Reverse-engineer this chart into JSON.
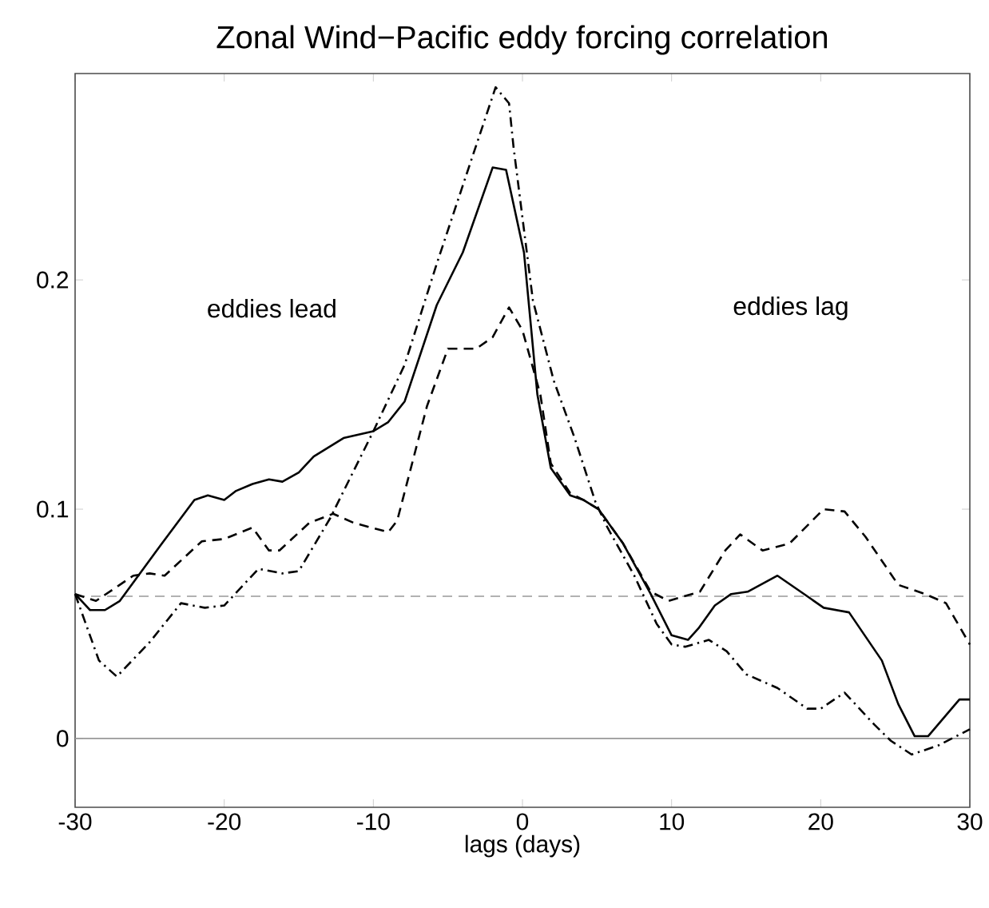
{
  "chart_data": {
    "type": "line",
    "title": "Zonal Wind−Pacific eddy forcing correlation",
    "xlabel": "lags (days)",
    "xlim": [
      -30,
      30
    ],
    "xticks": [
      -30,
      -20,
      -10,
      0,
      10,
      20,
      30
    ],
    "ylim": [
      -0.03,
      0.29
    ],
    "yticks": [
      0,
      0.1,
      0.2
    ],
    "annotations": [
      "eddies lead",
      "eddies lag"
    ],
    "ref_lines": [
      {
        "axis": "y",
        "value": 0.062,
        "color": "#999999",
        "line_style": "dashed"
      },
      {
        "axis": "y",
        "value": 0,
        "color": "#999999",
        "line_style": "solid"
      }
    ],
    "series": [
      {
        "color": "#000000",
        "line_style": "solid",
        "x": [
          -30,
          -29,
          -28,
          -27,
          -24.3,
          -22,
          -21.1,
          -20,
          -19.2,
          -18.1,
          -17,
          -16.1,
          -15,
          -14,
          -12,
          -10,
          -9,
          -7.9,
          -5.75,
          -4,
          -2,
          -1.1,
          0.1,
          1,
          1.9,
          3.2,
          4.1,
          5.1,
          6.75,
          8.6,
          10,
          11.1,
          11.8,
          12.9,
          14,
          15.1,
          17.1,
          19.1,
          20.2,
          21.9,
          24.1,
          25.2,
          26.3,
          27.2,
          29.3,
          30
        ],
        "values": [
          0.063,
          0.056,
          0.056,
          0.06,
          0.084,
          0.104,
          0.106,
          0.104,
          0.108,
          0.111,
          0.113,
          0.112,
          0.116,
          0.123,
          0.131,
          0.134,
          0.138,
          0.147,
          0.189,
          0.212,
          0.249,
          0.248,
          0.212,
          0.15,
          0.118,
          0.106,
          0.104,
          0.1,
          0.085,
          0.063,
          0.045,
          0.043,
          0.048,
          0.058,
          0.063,
          0.064,
          0.071,
          0.062,
          0.057,
          0.055,
          0.034,
          0.015,
          0.001,
          0.001,
          0.017,
          0.017
        ]
      },
      {
        "color": "#000000",
        "line_style": "dashed",
        "x": [
          -30,
          -28.6,
          -26.1,
          -25,
          -24,
          -21.5,
          -20,
          -18.1,
          -17,
          -16.3,
          -14.3,
          -12.7,
          -11.3,
          -9,
          -8.4,
          -6.4,
          -5,
          -3.1,
          -2,
          -0.9,
          0,
          1.2,
          1.9,
          3.2,
          4.1,
          5.1,
          6.75,
          8.6,
          9.8,
          11.9,
          13.6,
          14.6,
          16.1,
          17.9,
          20.2,
          21.6,
          23,
          25.2,
          27,
          28.4,
          30
        ],
        "values": [
          0.063,
          0.06,
          0.071,
          0.072,
          0.071,
          0.086,
          0.087,
          0.092,
          0.082,
          0.082,
          0.094,
          0.098,
          0.094,
          0.09,
          0.095,
          0.145,
          0.17,
          0.17,
          0.175,
          0.188,
          0.178,
          0.15,
          0.12,
          0.107,
          0.104,
          0.1,
          0.085,
          0.064,
          0.06,
          0.064,
          0.082,
          0.089,
          0.082,
          0.085,
          0.1,
          0.099,
          0.088,
          0.067,
          0.063,
          0.059,
          0.041
        ]
      },
      {
        "color": "#000000",
        "line_style": "dashdot",
        "x": [
          -30,
          -28.4,
          -27.2,
          -25,
          -22.9,
          -21.3,
          -20,
          -17.7,
          -16.1,
          -15,
          -12.9,
          -10,
          -7.9,
          -5.75,
          -3.6,
          -1.8,
          -0.9,
          -0.6,
          0.7,
          2.1,
          3.5,
          4.9,
          5.7,
          7.5,
          9,
          10,
          10.9,
          12.5,
          13.7,
          15,
          17.1,
          19.1,
          20,
          21.6,
          23.6,
          24.7,
          26.1,
          27.9,
          30
        ],
        "values": [
          0.063,
          0.034,
          0.027,
          0.042,
          0.059,
          0.057,
          0.058,
          0.074,
          0.072,
          0.073,
          0.096,
          0.134,
          0.163,
          0.207,
          0.249,
          0.284,
          0.277,
          0.258,
          0.191,
          0.156,
          0.131,
          0.103,
          0.092,
          0.071,
          0.05,
          0.041,
          0.04,
          0.043,
          0.038,
          0.028,
          0.022,
          0.013,
          0.013,
          0.02,
          0.006,
          -0.001,
          -0.007,
          -0.003,
          0.004
        ]
      }
    ]
  }
}
